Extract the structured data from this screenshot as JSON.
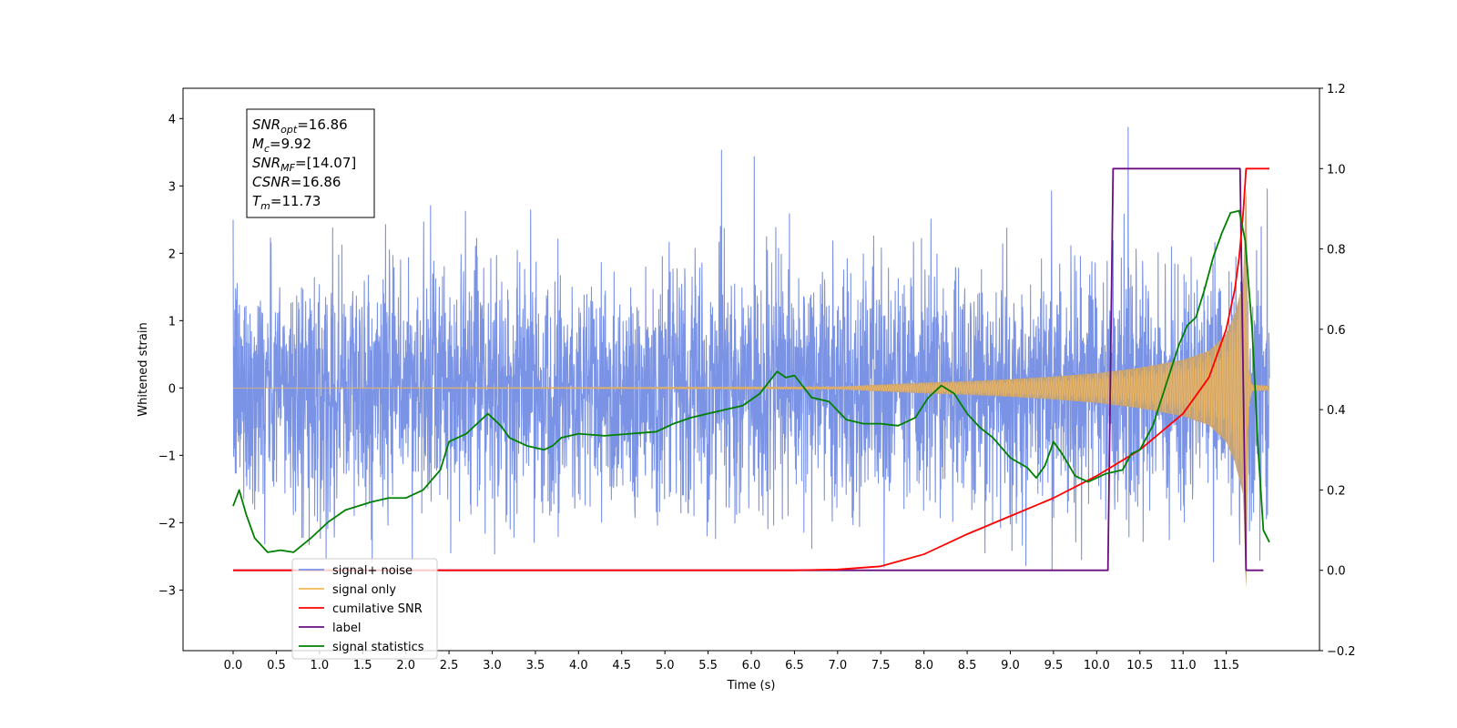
{
  "chart_data": {
    "type": "line",
    "xlabel": "Time (s)",
    "ylabel": "Whitened strain",
    "xlim": [
      -0.58,
      12.58
    ],
    "ylim": [
      -3.9,
      4.45
    ],
    "y2lim": [
      -0.2,
      1.2
    ],
    "x_ticks": [
      0.0,
      0.5,
      1.0,
      1.5,
      2.0,
      2.5,
      3.0,
      3.5,
      4.0,
      4.5,
      5.0,
      5.5,
      6.0,
      6.5,
      7.0,
      7.5,
      8.0,
      8.5,
      9.0,
      9.5,
      10.0,
      10.5,
      11.0,
      11.5
    ],
    "x_tick_labels": [
      "0.0",
      "0.5",
      "1.0",
      "1.5",
      "2.0",
      "2.5",
      "3.0",
      "3.5",
      "4.0",
      "4.5",
      "5.0",
      "5.5",
      "6.0",
      "6.5",
      "7.0",
      "7.5",
      "8.0",
      "8.5",
      "9.0",
      "9.5",
      "10.0",
      "10.5",
      "11.0",
      "11.5"
    ],
    "y_ticks": [
      -3,
      -2,
      -1,
      0,
      1,
      2,
      3,
      4
    ],
    "y_tick_labels": [
      "−3",
      "−2",
      "−1",
      "0",
      "1",
      "2",
      "3",
      "4"
    ],
    "y2_ticks": [
      -0.2,
      0.0,
      0.2,
      0.4,
      0.6,
      0.8,
      1.0,
      1.2
    ],
    "y2_tick_labels": [
      "−0.2",
      "0.0",
      "0.2",
      "0.4",
      "0.6",
      "0.8",
      "1.0",
      "1.2"
    ],
    "grid": false,
    "legend_position": "lower-left",
    "info_box": [
      {
        "base": "SNR",
        "sub": "opt",
        "value": "=16.86"
      },
      {
        "base": "M",
        "sub": "c",
        "value": "=9.92"
      },
      {
        "base": "SNR",
        "sub": "MF",
        "value": "=[14.07]"
      },
      {
        "base": "CSNR",
        "sub": "",
        "value": "=16.86"
      },
      {
        "base": "T",
        "sub": "m",
        "value": "=11.73"
      }
    ],
    "series": [
      {
        "name": "signal+ noise",
        "axis": "left",
        "color": "#7b93e5",
        "noise_std": 0.9,
        "x_range": [
          0.0,
          12.0
        ]
      },
      {
        "name": "signal only",
        "axis": "left",
        "color": "#f5b95a",
        "fill_color": "#c4a277",
        "x_range": [
          0.0,
          12.0
        ],
        "merger_time": 11.73,
        "envelope": [
          [
            0.0,
            0.0
          ],
          [
            7.0,
            0.02
          ],
          [
            7.5,
            0.05
          ],
          [
            8.0,
            0.08
          ],
          [
            8.5,
            0.1
          ],
          [
            9.0,
            0.13
          ],
          [
            9.5,
            0.17
          ],
          [
            10.0,
            0.22
          ],
          [
            10.5,
            0.3
          ],
          [
            11.0,
            0.42
          ],
          [
            11.3,
            0.55
          ],
          [
            11.5,
            0.8
          ],
          [
            11.6,
            1.1
          ],
          [
            11.7,
            1.6
          ],
          [
            11.73,
            3.3
          ],
          [
            11.76,
            0.3
          ],
          [
            11.8,
            0.05
          ],
          [
            12.0,
            0.03
          ]
        ]
      },
      {
        "name": "cumilative SNR",
        "axis": "right",
        "color": "#ff0000",
        "points": [
          [
            0.0,
            0.0
          ],
          [
            6.5,
            0.0
          ],
          [
            7.0,
            0.002
          ],
          [
            7.5,
            0.01
          ],
          [
            8.0,
            0.04
          ],
          [
            8.5,
            0.09
          ],
          [
            9.0,
            0.135
          ],
          [
            9.5,
            0.18
          ],
          [
            10.0,
            0.235
          ],
          [
            10.5,
            0.3
          ],
          [
            11.0,
            0.39
          ],
          [
            11.3,
            0.48
          ],
          [
            11.5,
            0.6
          ],
          [
            11.6,
            0.7
          ],
          [
            11.65,
            0.78
          ],
          [
            11.7,
            0.9
          ],
          [
            11.73,
            1.0
          ],
          [
            12.0,
            1.0
          ]
        ]
      },
      {
        "name": "label",
        "axis": "right",
        "color": "#6a0d7f",
        "points": [
          [
            0.0,
            0.0
          ],
          [
            10.13,
            0.0
          ],
          [
            10.19,
            1.0
          ],
          [
            11.66,
            1.0
          ],
          [
            11.73,
            0.0
          ],
          [
            11.93,
            0.0
          ]
        ]
      },
      {
        "name": "signal statistics",
        "axis": "right",
        "color": "#008000",
        "points": [
          [
            0.0,
            0.16
          ],
          [
            0.07,
            0.2
          ],
          [
            0.15,
            0.14
          ],
          [
            0.25,
            0.08
          ],
          [
            0.4,
            0.045
          ],
          [
            0.55,
            0.05
          ],
          [
            0.7,
            0.045
          ],
          [
            0.9,
            0.08
          ],
          [
            1.1,
            0.12
          ],
          [
            1.3,
            0.15
          ],
          [
            1.6,
            0.17
          ],
          [
            1.8,
            0.18
          ],
          [
            2.0,
            0.18
          ],
          [
            2.2,
            0.2
          ],
          [
            2.4,
            0.25
          ],
          [
            2.5,
            0.32
          ],
          [
            2.7,
            0.34
          ],
          [
            2.85,
            0.37
          ],
          [
            2.95,
            0.39
          ],
          [
            3.1,
            0.36
          ],
          [
            3.2,
            0.33
          ],
          [
            3.4,
            0.31
          ],
          [
            3.6,
            0.3
          ],
          [
            3.7,
            0.31
          ],
          [
            3.8,
            0.33
          ],
          [
            4.0,
            0.34
          ],
          [
            4.3,
            0.335
          ],
          [
            4.6,
            0.34
          ],
          [
            4.9,
            0.345
          ],
          [
            5.1,
            0.365
          ],
          [
            5.3,
            0.38
          ],
          [
            5.5,
            0.39
          ],
          [
            5.7,
            0.4
          ],
          [
            5.9,
            0.41
          ],
          [
            6.1,
            0.44
          ],
          [
            6.3,
            0.495
          ],
          [
            6.4,
            0.48
          ],
          [
            6.5,
            0.485
          ],
          [
            6.7,
            0.43
          ],
          [
            6.9,
            0.42
          ],
          [
            7.1,
            0.375
          ],
          [
            7.3,
            0.365
          ],
          [
            7.5,
            0.365
          ],
          [
            7.7,
            0.36
          ],
          [
            7.9,
            0.38
          ],
          [
            8.05,
            0.43
          ],
          [
            8.2,
            0.46
          ],
          [
            8.35,
            0.44
          ],
          [
            8.5,
            0.39
          ],
          [
            8.65,
            0.355
          ],
          [
            8.8,
            0.33
          ],
          [
            9.0,
            0.28
          ],
          [
            9.2,
            0.255
          ],
          [
            9.3,
            0.23
          ],
          [
            9.4,
            0.26
          ],
          [
            9.5,
            0.32
          ],
          [
            9.6,
            0.29
          ],
          [
            9.75,
            0.235
          ],
          [
            9.9,
            0.22
          ],
          [
            10.1,
            0.24
          ],
          [
            10.3,
            0.25
          ],
          [
            10.4,
            0.29
          ],
          [
            10.5,
            0.3
          ],
          [
            10.65,
            0.36
          ],
          [
            10.8,
            0.46
          ],
          [
            10.95,
            0.56
          ],
          [
            11.05,
            0.61
          ],
          [
            11.15,
            0.63
          ],
          [
            11.25,
            0.7
          ],
          [
            11.35,
            0.78
          ],
          [
            11.45,
            0.84
          ],
          [
            11.55,
            0.89
          ],
          [
            11.65,
            0.895
          ],
          [
            11.72,
            0.82
          ],
          [
            11.8,
            0.6
          ],
          [
            11.87,
            0.3
          ],
          [
            11.93,
            0.1
          ],
          [
            12.0,
            0.07
          ]
        ]
      }
    ],
    "legend": [
      {
        "label": "signal+ noise",
        "color": "#7b93e5"
      },
      {
        "label": "signal only",
        "color": "#f5b95a"
      },
      {
        "label": "cumilative SNR",
        "color": "#ff0000"
      },
      {
        "label": "label",
        "color": "#6a0d7f"
      },
      {
        "label": "signal statistics",
        "color": "#008000"
      }
    ]
  }
}
